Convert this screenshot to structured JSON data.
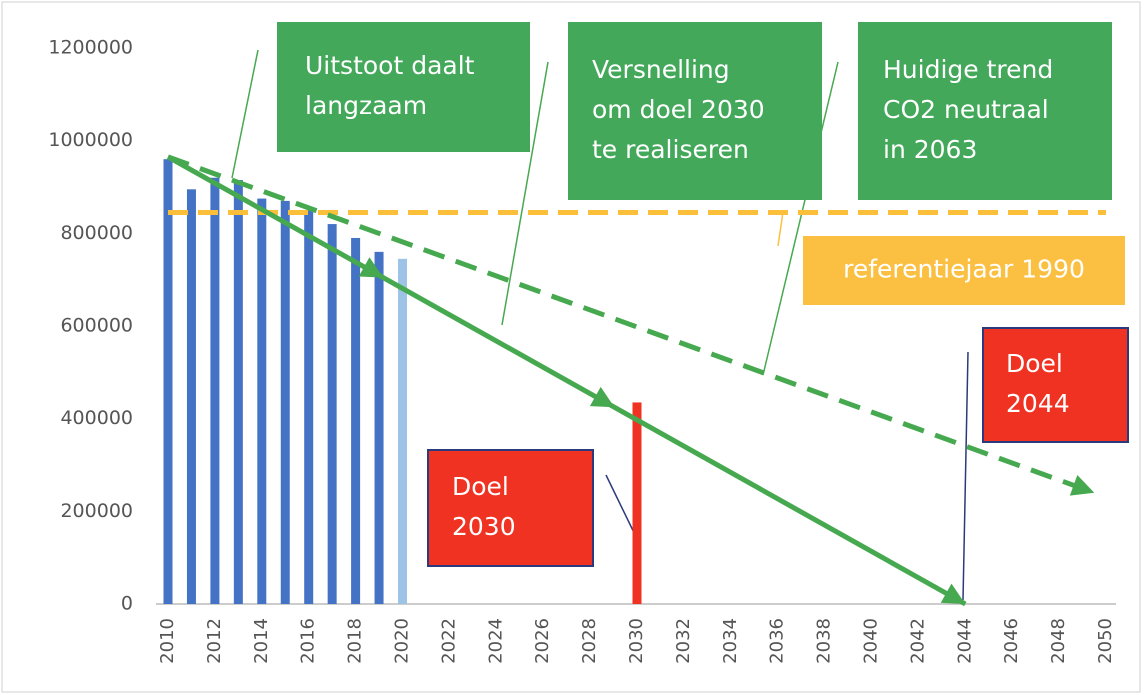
{
  "chart_data": {
    "type": "bar",
    "categories": [
      "2010",
      null,
      "2012",
      null,
      "2014",
      null,
      "2016",
      null,
      "2018",
      null,
      "2020",
      null,
      "2022",
      null,
      "2024",
      null,
      "2026",
      null,
      "2028",
      null,
      "2030",
      null,
      "2032",
      null,
      "2034",
      null,
      "2036",
      null,
      "2038",
      null,
      "2040",
      null,
      "2042",
      null,
      "2044",
      null,
      "2046",
      null,
      "2048",
      null,
      "2050"
    ],
    "values": [
      960000,
      895000,
      920000,
      915000,
      875000,
      870000,
      850000,
      820000,
      790000,
      760000,
      745000,
      null,
      null,
      null,
      null,
      null,
      null,
      null,
      null,
      null,
      435000,
      null,
      null,
      null,
      null,
      null,
      null,
      null,
      null,
      null,
      null,
      null,
      null,
      null,
      null,
      null,
      null,
      null,
      null,
      null,
      null
    ],
    "colors": [
      "#4472c4",
      "#4472c4",
      "#4472c4",
      "#4472c4",
      "#4472c4",
      "#4472c4",
      "#4472c4",
      "#4472c4",
      "#4472c4",
      "#4472c4",
      "#9dc3e6",
      null,
      null,
      null,
      null,
      null,
      null,
      null,
      null,
      null,
      "#f03223",
      null,
      null,
      null,
      null,
      null,
      null,
      null,
      null,
      null,
      null,
      null,
      null,
      null,
      null,
      null,
      null,
      null,
      null,
      null,
      null
    ],
    "ylim": [
      0,
      1200000
    ],
    "yticks": [
      0,
      200000,
      400000,
      600000,
      800000,
      1000000,
      1200000
    ],
    "grid": false,
    "reference_line": {
      "value": 845000,
      "color": "#fbbf3a"
    },
    "trend_lines": [
      {
        "from": [
          2010,
          965000
        ],
        "to": [
          2044,
          0
        ],
        "style": "solid",
        "color": "#46a94f"
      },
      {
        "from": [
          2010,
          965000
        ],
        "to": [
          2049.5,
          240000
        ],
        "style": "dashed",
        "color": "#46a94f"
      }
    ],
    "annotations": [
      {
        "lines": [
          "Uitstoot daalt",
          "langzaam"
        ],
        "color": "#43a85a"
      },
      {
        "lines": [
          "Versnelling",
          "om doel 2030",
          "te realiseren"
        ],
        "color": "#43a85a"
      },
      {
        "lines": [
          "Huidige trend",
          "CO2 neutraal",
          "in 2063"
        ],
        "color": "#43a85a"
      },
      {
        "lines": [
          "referentiejaar 1990"
        ],
        "color": "#fbc041"
      },
      {
        "lines": [
          "Doel",
          "2044"
        ],
        "color": "#f03223"
      },
      {
        "lines": [
          "Doel",
          "2030"
        ],
        "color": "#f03223"
      }
    ]
  }
}
